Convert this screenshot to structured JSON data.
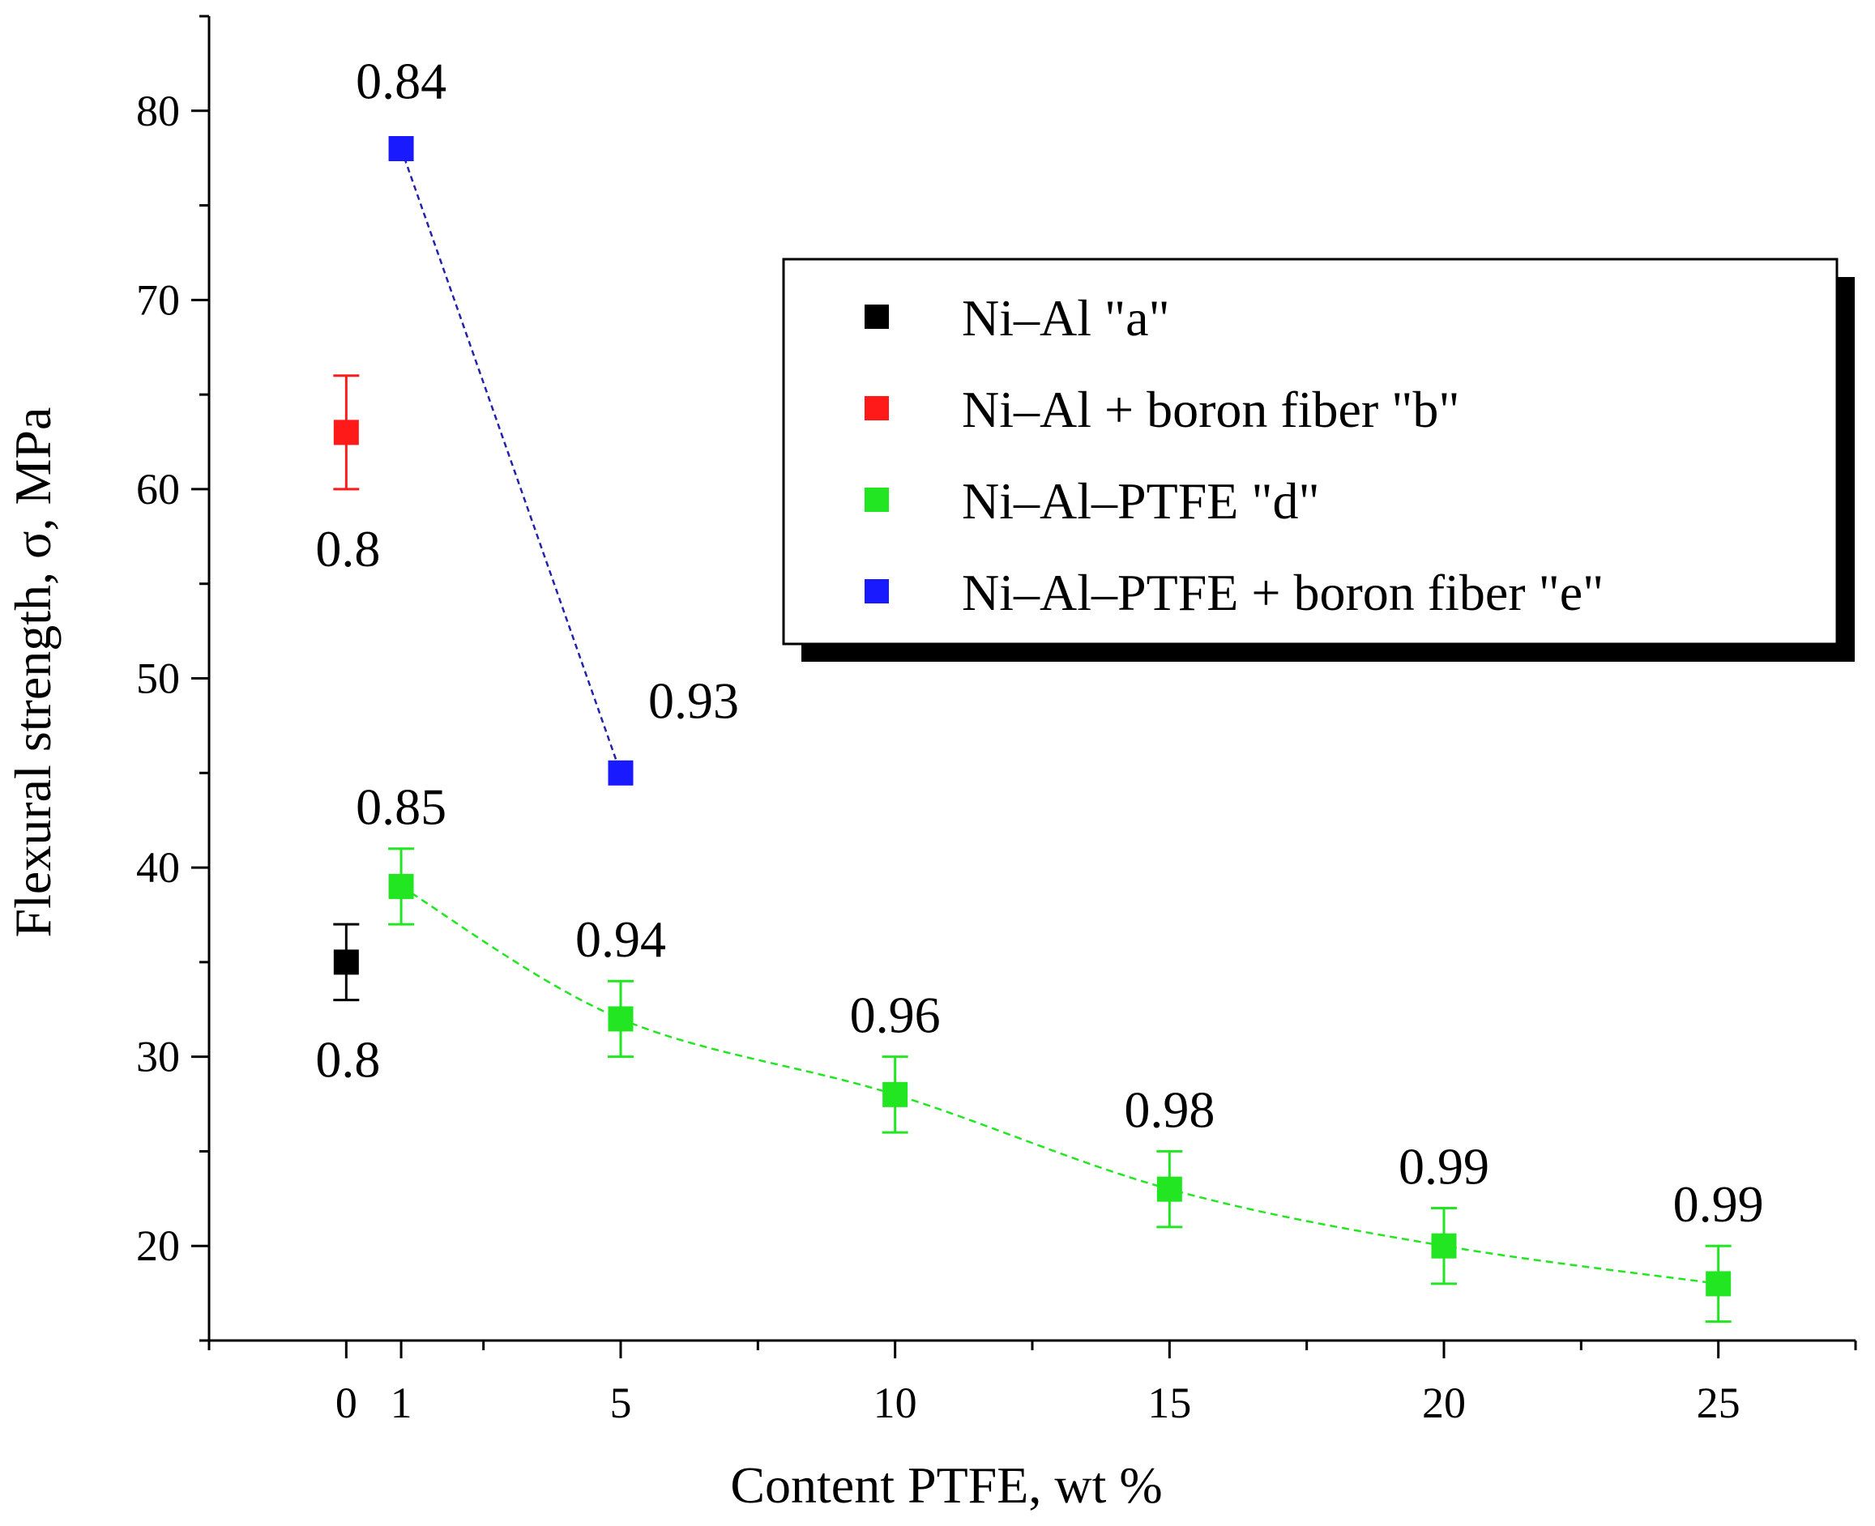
{
  "chart_data": {
    "type": "scatter",
    "title": "",
    "xlabel": "Content PTFE, wt %",
    "ylabel": "Flexural strength, σ, MPa",
    "xlim": [
      -2.5,
      27.5
    ],
    "ylim": [
      15,
      85
    ],
    "x_ticks": [
      0,
      1,
      5,
      10,
      15,
      20,
      25
    ],
    "x_tick_labels": [
      "0",
      "1",
      "5",
      "10",
      "15",
      "20",
      "25"
    ],
    "y_ticks": [
      20,
      30,
      40,
      50,
      60,
      70,
      80
    ],
    "y_tick_labels": [
      "20",
      "30",
      "40",
      "50",
      "60",
      "70",
      "80"
    ],
    "legend_position": "top-right",
    "series": [
      {
        "name": "Ni–Al \"a\"",
        "color": "#000000",
        "connect": false,
        "points": [
          {
            "x": 0,
            "y": 35,
            "err": 2,
            "label": "0.8",
            "label_pos": "below"
          }
        ]
      },
      {
        "name": "Ni–Al + boron fiber \"b\"",
        "color": "#ff1a1a",
        "connect": false,
        "points": [
          {
            "x": 0,
            "y": 63,
            "err": 3,
            "label": "0.8",
            "label_pos": "below"
          }
        ]
      },
      {
        "name": "Ni–Al–PTFE \"d\"",
        "color": "#22e622",
        "connect": true,
        "line_style": "dashed",
        "points": [
          {
            "x": 1,
            "y": 39,
            "err": 2,
            "label": "0.85",
            "label_pos": "above"
          },
          {
            "x": 5,
            "y": 32,
            "err": 2,
            "label": "0.94",
            "label_pos": "above"
          },
          {
            "x": 10,
            "y": 28,
            "err": 2,
            "label": "0.96",
            "label_pos": "above"
          },
          {
            "x": 15,
            "y": 23,
            "err": 2,
            "label": "0.98",
            "label_pos": "above"
          },
          {
            "x": 20,
            "y": 20,
            "err": 2,
            "label": "0.99",
            "label_pos": "above"
          },
          {
            "x": 25,
            "y": 18,
            "err": 2,
            "label": "0.99",
            "label_pos": "above"
          }
        ]
      },
      {
        "name": "Ni–Al–PTFE + boron fiber \"e\"",
        "color": "#1a1aff",
        "connect": true,
        "line_style": "dashed",
        "points": [
          {
            "x": 1,
            "y": 78,
            "err": 0,
            "label": "0.84",
            "label_pos": "above"
          },
          {
            "x": 5,
            "y": 45,
            "err": 0,
            "label": "0.93",
            "label_pos": "above-right"
          }
        ]
      }
    ]
  }
}
